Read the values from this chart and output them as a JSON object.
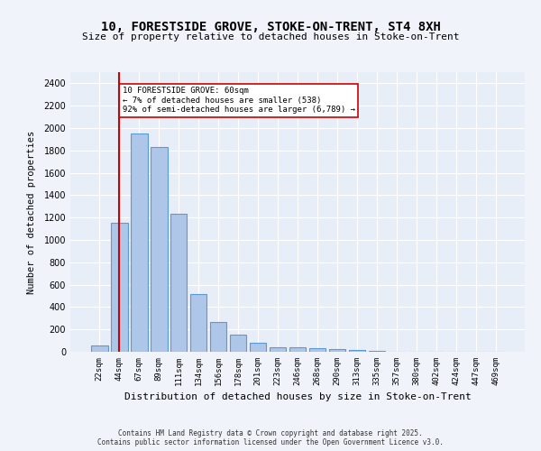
{
  "title_line1": "10, FORESTSIDE GROVE, STOKE-ON-TRENT, ST4 8XH",
  "title_line2": "Size of property relative to detached houses in Stoke-on-Trent",
  "xlabel": "Distribution of detached houses by size in Stoke-on-Trent",
  "ylabel": "Number of detached properties",
  "categories": [
    "22sqm",
    "44sqm",
    "67sqm",
    "89sqm",
    "111sqm",
    "134sqm",
    "156sqm",
    "178sqm",
    "201sqm",
    "223sqm",
    "246sqm",
    "268sqm",
    "290sqm",
    "313sqm",
    "335sqm",
    "357sqm",
    "380sqm",
    "402sqm",
    "424sqm",
    "447sqm",
    "469sqm"
  ],
  "values": [
    55,
    1150,
    1950,
    1830,
    1230,
    520,
    265,
    155,
    80,
    40,
    40,
    35,
    25,
    15,
    5,
    2,
    1,
    0,
    0,
    0,
    0
  ],
  "bar_color": "#aec6e8",
  "bar_edge_color": "#5b9bd5",
  "vline_x": 1,
  "vline_color": "#cc0000",
  "annotation_text": "10 FORESTSIDE GROVE: 60sqm\n← 7% of detached houses are smaller (538)\n92% of semi-detached houses are larger (6,789) →",
  "annotation_box_color": "#ffffff",
  "annotation_box_edge": "#cc0000",
  "ylim": [
    0,
    2500
  ],
  "yticks": [
    0,
    200,
    400,
    600,
    800,
    1000,
    1200,
    1400,
    1600,
    1800,
    2000,
    2200,
    2400
  ],
  "background_color": "#e8eef7",
  "grid_color": "#ffffff",
  "footer_line1": "Contains HM Land Registry data © Crown copyright and database right 2025.",
  "footer_line2": "Contains public sector information licensed under the Open Government Licence v3.0."
}
